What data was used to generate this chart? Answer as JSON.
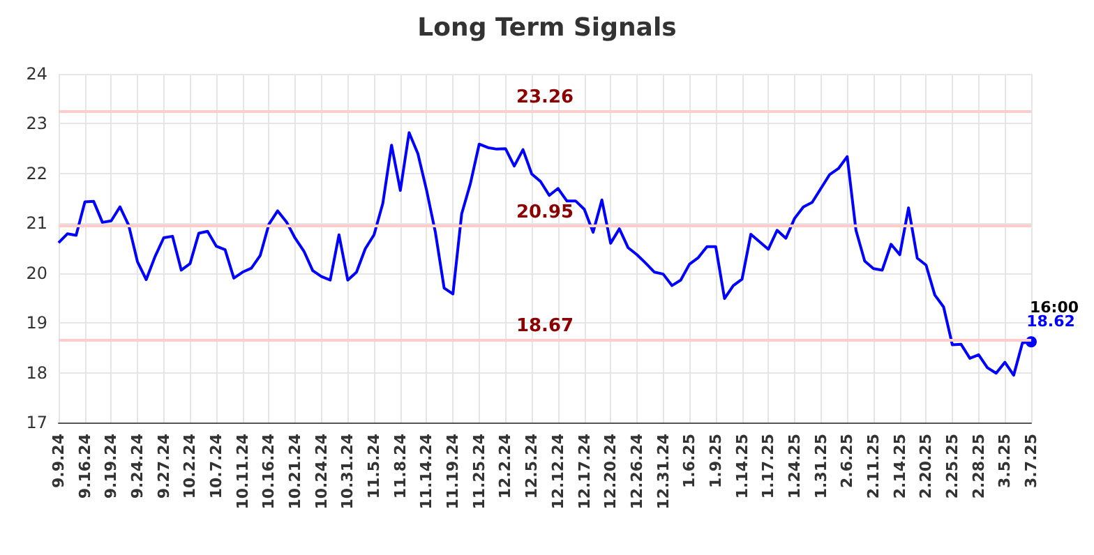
{
  "chart_data": {
    "type": "line",
    "title": "Long Term Signals",
    "categories": [
      "9.9.24",
      null,
      null,
      "9.16.24",
      null,
      null,
      "9.19.24",
      null,
      null,
      "9.24.24",
      null,
      null,
      "9.27.24",
      null,
      null,
      "10.2.24",
      null,
      null,
      "10.7.24",
      null,
      null,
      "10.11.24",
      null,
      null,
      "10.16.24",
      null,
      null,
      "10.21.24",
      null,
      null,
      "10.24.24",
      null,
      null,
      "10.31.24",
      null,
      null,
      "11.5.24",
      null,
      null,
      "11.8.24",
      null,
      null,
      "11.14.24",
      null,
      null,
      "11.19.24",
      null,
      null,
      "11.25.24",
      null,
      null,
      "12.2.24",
      null,
      null,
      "12.5.24",
      null,
      null,
      "12.12.24",
      null,
      null,
      "12.17.24",
      null,
      null,
      "12.20.24",
      null,
      null,
      "12.26.24",
      null,
      null,
      "12.31.24",
      null,
      null,
      "1.6.25",
      null,
      null,
      "1.9.25",
      null,
      null,
      "1.14.25",
      null,
      null,
      "1.17.25",
      null,
      null,
      "1.24.25",
      null,
      null,
      "1.31.25",
      null,
      null,
      "2.6.25",
      null,
      null,
      "2.11.25",
      null,
      null,
      "2.14.25",
      null,
      null,
      "2.20.25",
      null,
      null,
      "2.25.25",
      null,
      null,
      "2.28.25",
      null,
      null,
      "3.5.25",
      null,
      null,
      "3.7.25"
    ],
    "series": [
      {
        "color": "#0000ff",
        "values": [
          20.61,
          20.79,
          20.76,
          21.43,
          21.44,
          21.02,
          21.05,
          21.33,
          20.96,
          20.23,
          19.87,
          20.33,
          20.71,
          20.74,
          20.06,
          20.19,
          20.8,
          20.84,
          20.54,
          20.47,
          19.9,
          20.02,
          20.1,
          20.35,
          20.98,
          21.25,
          21.03,
          20.7,
          20.44,
          20.05,
          19.93,
          19.86,
          20.77,
          19.86,
          20.02,
          20.49,
          20.77,
          21.4,
          22.57,
          21.66,
          22.82,
          22.4,
          21.66,
          20.82,
          19.7,
          19.58,
          21.19,
          21.8,
          22.59,
          22.52,
          22.49,
          22.5,
          22.15,
          22.48,
          21.99,
          21.84,
          21.56,
          21.7,
          21.45,
          21.45,
          21.28,
          20.82,
          21.47,
          20.6,
          20.89,
          20.51,
          20.37,
          20.2,
          20.02,
          19.98,
          19.75,
          19.86,
          20.18,
          20.31,
          20.53,
          20.53,
          19.49,
          19.75,
          19.88,
          20.78,
          20.63,
          20.48,
          20.86,
          20.7,
          21.1,
          21.33,
          21.42,
          21.7,
          21.98,
          22.1,
          22.34,
          20.86,
          20.24,
          20.09,
          20.06,
          20.58,
          20.37,
          21.31,
          20.3,
          20.16,
          19.56,
          19.32,
          18.56,
          18.57,
          18.29,
          18.36,
          18.1,
          17.99,
          18.21,
          17.95,
          18.6,
          18.62
        ],
        "value_labels": [
          null,
          null,
          null,
          null,
          null,
          null,
          null,
          null,
          null,
          null,
          null,
          null,
          null,
          null,
          null,
          null,
          null,
          null,
          null,
          null,
          null,
          null,
          null,
          null,
          null,
          null,
          null,
          null,
          null,
          null,
          null,
          null,
          null,
          null,
          null,
          null,
          null,
          null,
          null,
          null,
          null,
          null,
          null,
          null,
          null,
          null,
          null,
          null,
          null,
          null,
          null,
          null,
          null,
          null,
          null,
          null,
          null,
          null,
          null,
          null,
          null,
          null,
          null,
          null,
          null,
          null,
          null,
          null,
          null,
          null,
          null,
          null,
          null,
          null,
          null,
          null,
          null,
          null,
          null,
          null,
          null,
          null,
          null,
          null,
          null,
          null,
          null,
          null,
          null,
          null,
          null,
          null,
          null,
          null,
          null,
          null,
          null,
          null,
          null,
          null,
          null,
          null,
          null,
          null,
          null,
          null,
          null,
          null,
          null,
          null,
          null,
          "18.62"
        ]
      }
    ],
    "ylim": [
      17,
      24
    ],
    "yticks": [
      17,
      18,
      19,
      20,
      21,
      22,
      23,
      24
    ],
    "grid": true,
    "ref_lines": [
      {
        "axis": "y",
        "value": 23.26,
        "label": "23.26",
        "color": "#ffcccc"
      },
      {
        "axis": "y",
        "value": 20.95,
        "label": "20.95",
        "color": "#ffcccc"
      },
      {
        "axis": "y",
        "value": 18.67,
        "label": "18.67",
        "color": "#ffcccc"
      }
    ],
    "annotations": [
      {
        "text": "16:00",
        "x": "3.7.25",
        "y": 18.62
      }
    ]
  }
}
